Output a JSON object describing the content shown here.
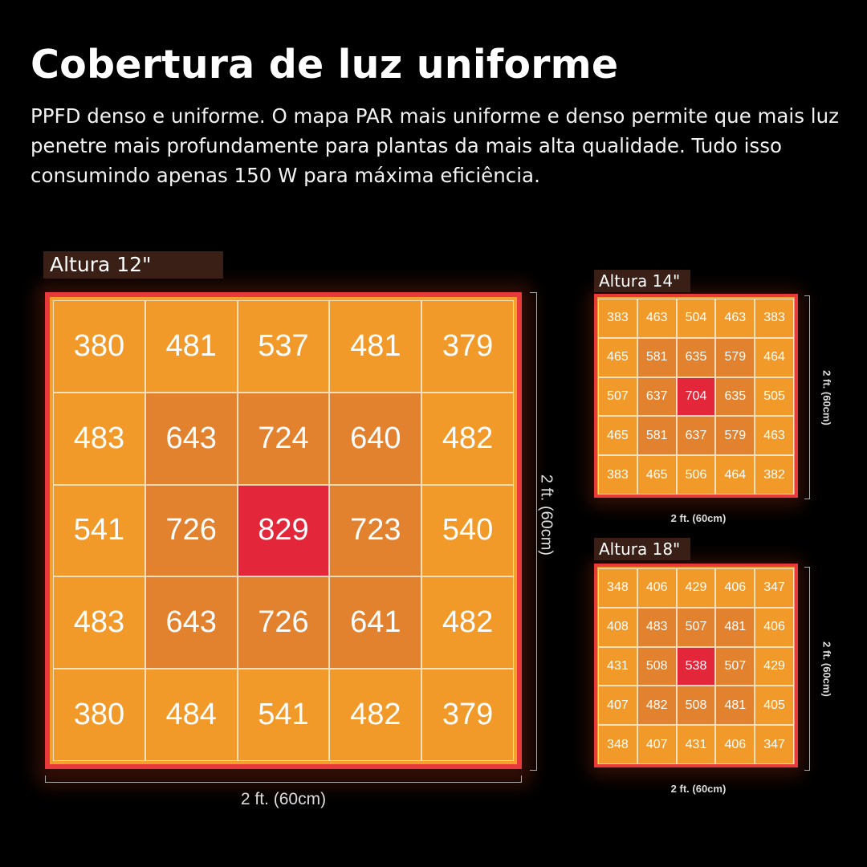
{
  "title": "Cobertura de luz uniforme",
  "description": "PPFD denso e uniforme. O mapa PAR mais uniforme e denso permite que mais luz penetre mais profundamente para plantas da mais alta qualidade. Tudo isso consumindo apenas  150 W para máxima eficiência.",
  "maps": [
    {
      "label": "Altura 12\"",
      "width_label": "2 ft. (60cm)",
      "height_label": "2 ft. (60cm)",
      "values": [
        [
          "380",
          "481",
          "537",
          "481",
          "379"
        ],
        [
          "483",
          "643",
          "724",
          "640",
          "482"
        ],
        [
          "541",
          "726",
          "829",
          "723",
          "540"
        ],
        [
          "483",
          "643",
          "726",
          "641",
          "482"
        ],
        [
          "380",
          "484",
          "541",
          "482",
          "379"
        ]
      ]
    },
    {
      "label": "Altura 14\"",
      "width_label": "2 ft. (60cm)",
      "height_label": "2 ft. (60cm)",
      "values": [
        [
          "383",
          "463",
          "504",
          "463",
          "383"
        ],
        [
          "465",
          "581",
          "635",
          "579",
          "464"
        ],
        [
          "507",
          "637",
          "704",
          "635",
          "505"
        ],
        [
          "465",
          "581",
          "637",
          "579",
          "463"
        ],
        [
          "383",
          "465",
          "506",
          "464",
          "382"
        ]
      ]
    },
    {
      "label": "Altura 18\"",
      "width_label": "2 ft. (60cm)",
      "height_label": "2 ft. (60cm)",
      "values": [
        [
          "348",
          "406",
          "429",
          "406",
          "347"
        ],
        [
          "408",
          "483",
          "507",
          "481",
          "406"
        ],
        [
          "431",
          "508",
          "538",
          "507",
          "429"
        ],
        [
          "407",
          "482",
          "508",
          "481",
          "405"
        ],
        [
          "348",
          "407",
          "431",
          "406",
          "347"
        ]
      ]
    }
  ],
  "colors": {
    "outer": "#f19a29",
    "ring": "#e2812e",
    "center": "#e4263a",
    "frame": "#e83a3a"
  }
}
